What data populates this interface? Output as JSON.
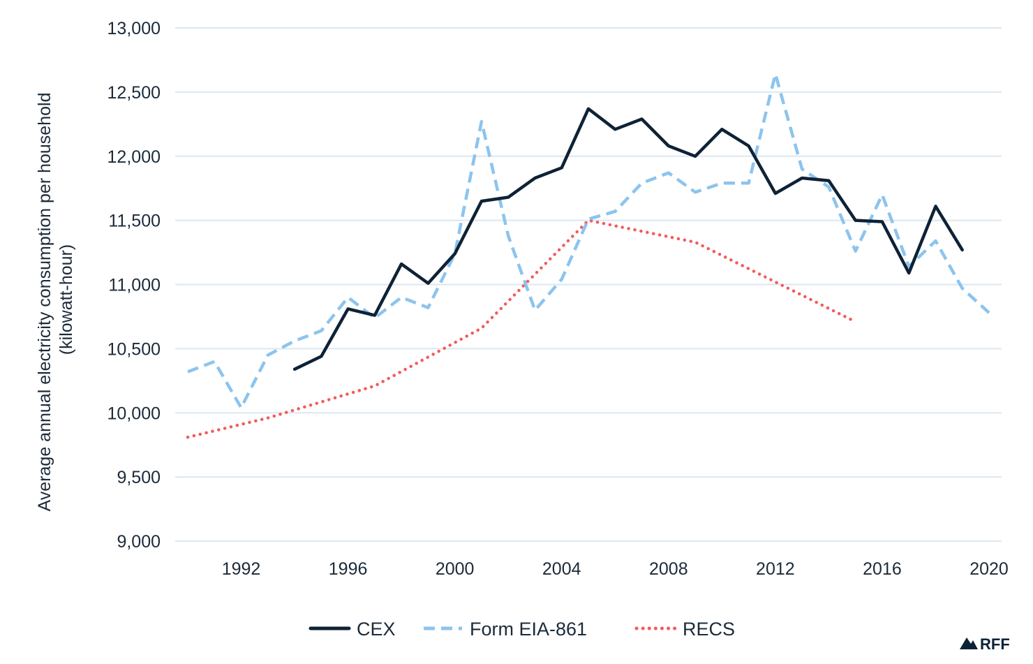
{
  "brand": {
    "logo_text": "RFF"
  },
  "chart_data": {
    "type": "line",
    "title": "",
    "xlabel": "",
    "ylabel": [
      "Average annual electricity consumption per household",
      "(kilowatt-hour)"
    ],
    "xlim": [
      1990,
      2020
    ],
    "ylim": [
      9000,
      13000
    ],
    "x_ticks": [
      1992,
      1996,
      2000,
      2004,
      2008,
      2012,
      2016,
      2020
    ],
    "y_ticks": [
      9000,
      9500,
      10000,
      10500,
      11000,
      11500,
      12000,
      12500,
      13000
    ],
    "y_tick_labels": [
      "9,000",
      "9,500",
      "10,000",
      "10,500",
      "11,000",
      "11,500",
      "12,000",
      "12,500",
      "13,000"
    ],
    "grid": "horizontal",
    "legend_position": "bottom",
    "series": [
      {
        "name": "CEX",
        "style": "solid",
        "color": "#0e2236",
        "points": [
          [
            1994,
            10340
          ],
          [
            1995,
            10440
          ],
          [
            1996,
            10810
          ],
          [
            1997,
            10760
          ],
          [
            1998,
            11160
          ],
          [
            1999,
            11010
          ],
          [
            2000,
            11240
          ],
          [
            2001,
            11650
          ],
          [
            2002,
            11680
          ],
          [
            2003,
            11830
          ],
          [
            2004,
            11910
          ],
          [
            2005,
            12370
          ],
          [
            2006,
            12210
          ],
          [
            2007,
            12290
          ],
          [
            2008,
            12080
          ],
          [
            2009,
            12000
          ],
          [
            2010,
            12210
          ],
          [
            2011,
            12080
          ],
          [
            2012,
            11710
          ],
          [
            2013,
            11830
          ],
          [
            2014,
            11810
          ],
          [
            2015,
            11500
          ],
          [
            2016,
            11490
          ],
          [
            2017,
            11090
          ],
          [
            2018,
            11610
          ],
          [
            2019,
            11270
          ]
        ]
      },
      {
        "name": "Form EIA-861",
        "style": "dashed",
        "color": "#8cc4ee",
        "points": [
          [
            1990,
            10320
          ],
          [
            1991,
            10400
          ],
          [
            1992,
            10040
          ],
          [
            1993,
            10450
          ],
          [
            1994,
            10560
          ],
          [
            1995,
            10640
          ],
          [
            1996,
            10900
          ],
          [
            1997,
            10740
          ],
          [
            1998,
            10900
          ],
          [
            1999,
            10820
          ],
          [
            2000,
            11240
          ],
          [
            2001,
            12270
          ],
          [
            2002,
            11380
          ],
          [
            2003,
            10800
          ],
          [
            2004,
            11040
          ],
          [
            2005,
            11510
          ],
          [
            2006,
            11570
          ],
          [
            2007,
            11790
          ],
          [
            2008,
            11870
          ],
          [
            2009,
            11720
          ],
          [
            2010,
            11790
          ],
          [
            2011,
            11790
          ],
          [
            2012,
            12640
          ],
          [
            2013,
            11900
          ],
          [
            2014,
            11760
          ],
          [
            2015,
            11260
          ],
          [
            2016,
            11700
          ],
          [
            2017,
            11140
          ],
          [
            2018,
            11340
          ],
          [
            2019,
            10970
          ],
          [
            2020,
            10780
          ]
        ]
      },
      {
        "name": "RECS",
        "style": "dotted",
        "color": "#f25c5c",
        "points": [
          [
            1990,
            9810
          ],
          [
            1993,
            9960
          ],
          [
            1997,
            10210
          ],
          [
            2001,
            10660
          ],
          [
            2005,
            11500
          ],
          [
            2009,
            11330
          ],
          [
            2015,
            10710
          ]
        ]
      }
    ]
  }
}
